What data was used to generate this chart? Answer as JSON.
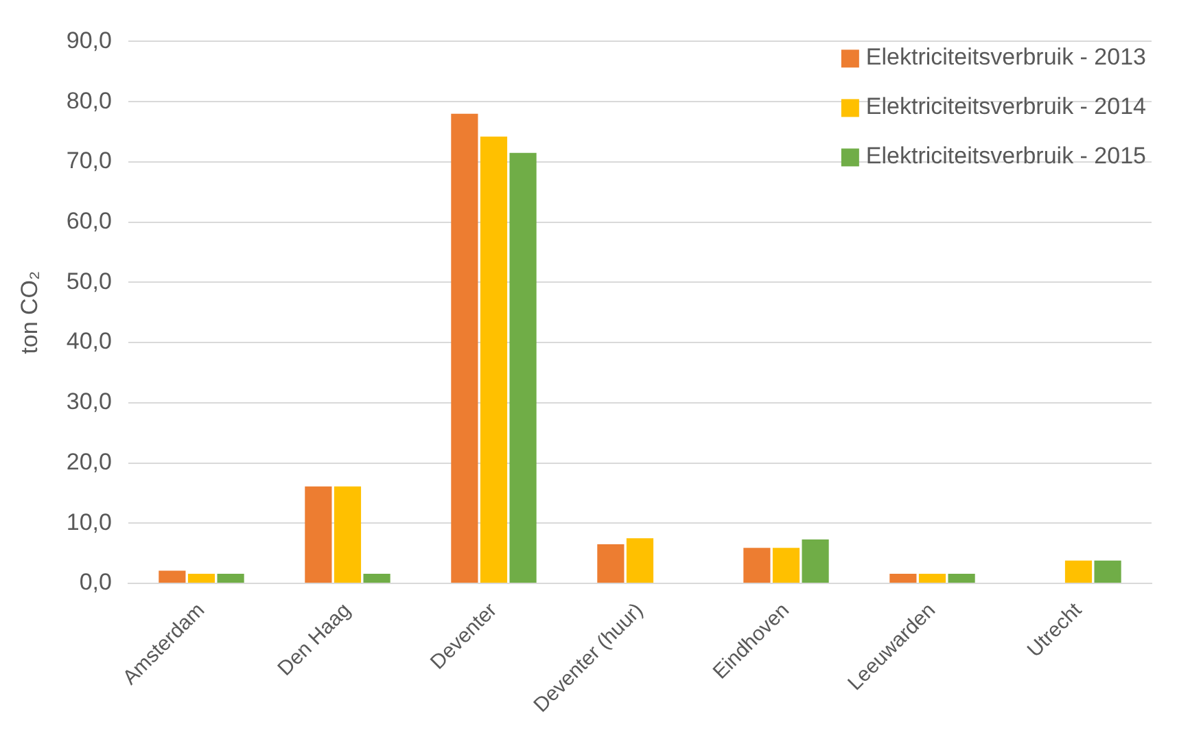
{
  "chart_data": {
    "type": "bar",
    "ylabel": "ton CO₂",
    "categories": [
      "Amsterdam",
      "Den Haag",
      "Deventer",
      "Deventer (huur)",
      "Eindhoven",
      "Leeuwarden",
      "Utrecht"
    ],
    "series": [
      {
        "name": "Elektriciteitsverbruik - 2013",
        "color": "#ed7d31",
        "values": [
          2.1,
          16.1,
          78.0,
          6.5,
          5.9,
          1.6,
          null
        ]
      },
      {
        "name": "Elektriciteitsverbruik - 2014",
        "color": "#ffc000",
        "values": [
          1.6,
          16.1,
          74.2,
          7.5,
          5.9,
          1.6,
          3.8
        ]
      },
      {
        "name": "Elektriciteitsverbruik - 2015",
        "color": "#70ad47",
        "values": [
          1.6,
          1.6,
          71.5,
          null,
          7.3,
          1.6,
          3.8
        ]
      }
    ],
    "ylim": [
      0,
      90
    ],
    "yticks": [
      {
        "value": 0,
        "label": "0,0"
      },
      {
        "value": 10,
        "label": "10,0"
      },
      {
        "value": 20,
        "label": "20,0"
      },
      {
        "value": 30,
        "label": "30,0"
      },
      {
        "value": 40,
        "label": "40,0"
      },
      {
        "value": 50,
        "label": "50,0"
      },
      {
        "value": 60,
        "label": "60,0"
      },
      {
        "value": 70,
        "label": "70,0"
      },
      {
        "value": 80,
        "label": "80,0"
      },
      {
        "value": 90,
        "label": "90,0"
      }
    ],
    "grid": "y",
    "legend": "top right"
  }
}
